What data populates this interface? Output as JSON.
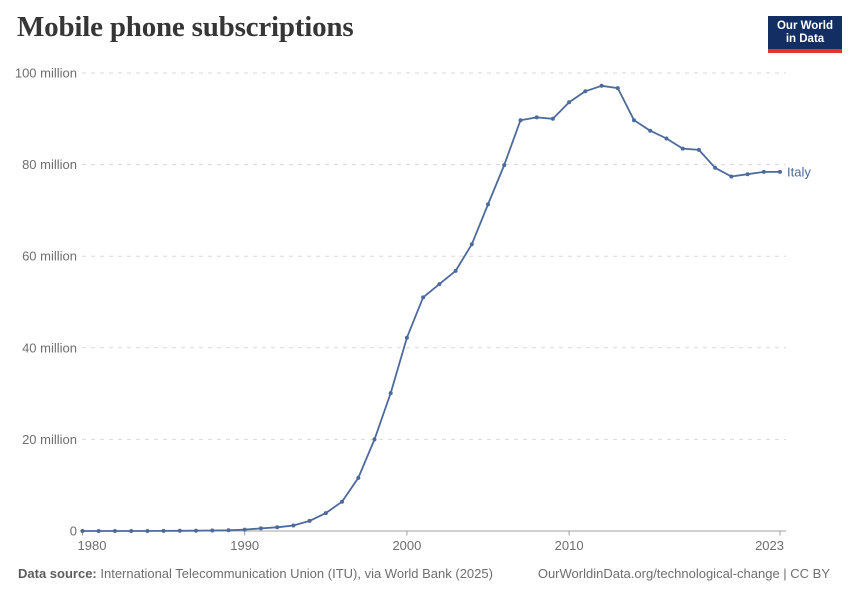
{
  "header": {
    "title": "Mobile phone subscriptions",
    "logo": {
      "line1": "Our World",
      "line2": "in Data"
    }
  },
  "chart_data": {
    "type": "line",
    "title": "Mobile phone subscriptions",
    "x": [
      1980,
      1981,
      1982,
      1983,
      1984,
      1985,
      1986,
      1987,
      1988,
      1989,
      1990,
      1991,
      1992,
      1993,
      1994,
      1995,
      1996,
      1997,
      1998,
      1999,
      2000,
      2001,
      2002,
      2003,
      2004,
      2005,
      2006,
      2007,
      2008,
      2009,
      2010,
      2011,
      2012,
      2013,
      2014,
      2015,
      2016,
      2017,
      2018,
      2019,
      2020,
      2021,
      2022,
      2023
    ],
    "series": [
      {
        "name": "Italy",
        "color": "#4c6a9c",
        "values": [
          0,
          0,
          0,
          0,
          0.01,
          0.02,
          0.04,
          0.07,
          0.1,
          0.16,
          0.3,
          0.57,
          0.8,
          1.2,
          2.2,
          3.9,
          6.4,
          11.6,
          20.0,
          30.1,
          42.2,
          51.0,
          53.9,
          56.8,
          62.6,
          71.3,
          79.9,
          89.7,
          90.3,
          90.0,
          93.6,
          96.0,
          97.2,
          96.7,
          89.7,
          87.4,
          85.7,
          83.5,
          83.2,
          79.3,
          77.4,
          77.9,
          78.4,
          78.4
        ]
      }
    ],
    "unit": "million",
    "xlabel": "",
    "ylabel": "",
    "xlim": [
      1980,
      2023
    ],
    "ylim": [
      0,
      100
    ],
    "grid": "horizontal-dashed",
    "legend_position": "end-of-line-label",
    "yticks": [
      {
        "v": 0,
        "label": "0"
      },
      {
        "v": 20,
        "label": "20 million"
      },
      {
        "v": 40,
        "label": "40 million"
      },
      {
        "v": 60,
        "label": "60 million"
      },
      {
        "v": 80,
        "label": "80 million"
      },
      {
        "v": 100,
        "label": "100 million"
      }
    ],
    "xticks": [
      {
        "v": 1980,
        "label": "1980",
        "align": "start"
      },
      {
        "v": 1990,
        "label": "1990",
        "align": "middle"
      },
      {
        "v": 2000,
        "label": "2000",
        "align": "middle"
      },
      {
        "v": 2010,
        "label": "2010",
        "align": "middle"
      },
      {
        "v": 2023,
        "label": "2023",
        "align": "end"
      }
    ]
  },
  "footer": {
    "source_label": "Data source:",
    "source_text": " International Telecommunication Union (ITU), via World Bank (2025)",
    "rights": "OurWorldinData.org/technological-change | CC BY"
  },
  "colors": {
    "line": "#4c6a9c",
    "grid": "#d9d9d9",
    "axis": "#a1a1a1",
    "tick_text": "#6e6e6e",
    "logo_bg": "#132e62",
    "logo_accent": "#e0372c"
  }
}
